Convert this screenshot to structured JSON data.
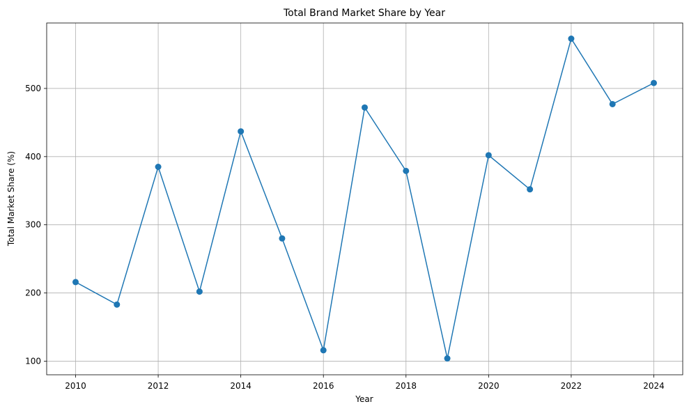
{
  "chart_data": {
    "type": "line",
    "title": "Total Brand Market Share by Year",
    "xlabel": "Year",
    "ylabel": "Total Market Share (%)",
    "x": [
      2010,
      2011,
      2012,
      2013,
      2014,
      2015,
      2016,
      2017,
      2018,
      2019,
      2020,
      2021,
      2022,
      2023,
      2024
    ],
    "series": [
      {
        "values": [
          216,
          183,
          385,
          202,
          437,
          280,
          116,
          472,
          379,
          104,
          402,
          352,
          573,
          477,
          508
        ],
        "color": "#1f77b4",
        "marker": "circle"
      }
    ],
    "xlim": [
      2009.3,
      2024.7
    ],
    "ylim": [
      80,
      596
    ],
    "xticks": [
      2010,
      2012,
      2014,
      2016,
      2018,
      2020,
      2022,
      2024
    ],
    "yticks": [
      100,
      200,
      300,
      400,
      500
    ],
    "xtick_labels": [
      "2010",
      "2012",
      "2014",
      "2016",
      "2018",
      "2020",
      "2022",
      "2024"
    ],
    "ytick_labels": [
      "100",
      "200",
      "300",
      "400",
      "500"
    ],
    "grid": true,
    "legend": "none"
  }
}
